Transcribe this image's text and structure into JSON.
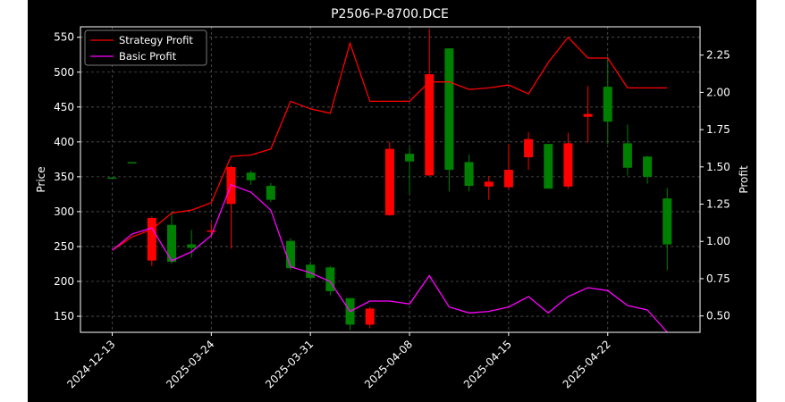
{
  "chart_data": {
    "type": "candlestick",
    "title": "P2506-P-8700.DCE",
    "xlabel": "",
    "ylabel_left": "Price",
    "ylabel_right": "Profit",
    "ylim_left": [
      127,
      565
    ],
    "ylim_right": [
      0.39,
      2.44
    ],
    "yticks_left": [
      150,
      200,
      250,
      300,
      350,
      400,
      450,
      500,
      550
    ],
    "yticks_right": [
      0.5,
      0.75,
      1.0,
      1.25,
      1.5,
      1.75,
      2.0,
      2.25
    ],
    "xtick_labels": [
      {
        "label": "2024-12-13",
        "index": 0
      },
      {
        "label": "2025-03-24",
        "index": 5
      },
      {
        "label": "2025-03-31",
        "index": 10
      },
      {
        "label": "2025-04-08",
        "index": 15
      },
      {
        "label": "2025-04-15",
        "index": 20
      },
      {
        "label": "2025-04-22",
        "index": 25
      }
    ],
    "grid": true,
    "legend_position": "top-left",
    "candles": [
      {
        "o": 349,
        "h": 349,
        "l": 349,
        "c": 349
      },
      {
        "o": 371,
        "h": 371,
        "l": 371,
        "c": 371
      },
      {
        "o": 291,
        "h": 293,
        "l": 222,
        "c": 230
      },
      {
        "o": 228,
        "h": 300,
        "l": 225,
        "c": 281
      },
      {
        "o": 248,
        "h": 274,
        "l": 234,
        "c": 253
      },
      {
        "o": 273,
        "h": 284,
        "l": 264,
        "c": 272
      },
      {
        "o": 364,
        "h": 366,
        "l": 247,
        "c": 311
      },
      {
        "o": 345,
        "h": 359,
        "l": 338,
        "c": 356
      },
      {
        "o": 317,
        "h": 341,
        "l": 314,
        "c": 337
      },
      {
        "o": 219,
        "h": 262,
        "l": 216,
        "c": 258
      },
      {
        "o": 205,
        "h": 229,
        "l": 202,
        "c": 224
      },
      {
        "o": 186,
        "h": 222,
        "l": 180,
        "c": 220
      },
      {
        "o": 138,
        "h": 176,
        "l": 130,
        "c": 176
      },
      {
        "o": 161,
        "h": 163,
        "l": 133,
        "c": 138
      },
      {
        "o": 390,
        "h": 400,
        "l": 294,
        "c": 295
      },
      {
        "o": 372,
        "h": 392,
        "l": 325,
        "c": 383
      },
      {
        "o": 497,
        "h": 562,
        "l": 351,
        "c": 352
      },
      {
        "o": 360,
        "h": 534,
        "l": 329,
        "c": 534
      },
      {
        "o": 337,
        "h": 382,
        "l": 329,
        "c": 371
      },
      {
        "o": 343,
        "h": 351,
        "l": 317,
        "c": 336
      },
      {
        "o": 360,
        "h": 397,
        "l": 332,
        "c": 335
      },
      {
        "o": 404,
        "h": 414,
        "l": 360,
        "c": 378
      },
      {
        "o": 333,
        "h": 397,
        "l": 333,
        "c": 397
      },
      {
        "o": 398,
        "h": 413,
        "l": 333,
        "c": 336
      },
      {
        "o": 440,
        "h": 480,
        "l": 399,
        "c": 436
      },
      {
        "o": 429,
        "h": 522,
        "l": 397,
        "c": 479
      },
      {
        "o": 363,
        "h": 425,
        "l": 352,
        "c": 398
      },
      {
        "o": 350,
        "h": 380,
        "l": 340,
        "c": 379
      },
      {
        "o": 253,
        "h": 334,
        "l": 216,
        "c": 319
      }
    ],
    "series": [
      {
        "name": "Strategy Profit",
        "color": "#ff0000",
        "values": [
          0.94,
          1.03,
          1.08,
          1.19,
          1.21,
          1.26,
          1.57,
          1.58,
          1.62,
          1.94,
          1.89,
          1.86,
          2.33,
          1.94,
          1.94,
          1.94,
          2.07,
          2.07,
          2.02,
          2.03,
          2.05,
          1.99,
          2.2,
          2.37,
          2.23,
          2.23,
          2.03,
          2.03,
          2.03
        ]
      },
      {
        "name": "Basic Profit",
        "color": "#ff00ff",
        "values": [
          0.94,
          1.05,
          1.09,
          0.87,
          0.93,
          1.04,
          1.38,
          1.33,
          1.21,
          0.83,
          0.79,
          0.73,
          0.53,
          0.6,
          0.6,
          0.58,
          0.77,
          0.56,
          0.52,
          0.53,
          0.56,
          0.63,
          0.52,
          0.63,
          0.69,
          0.67,
          0.57,
          0.54,
          0.39
        ]
      }
    ],
    "up_color": "#008000",
    "down_color": "#ff0000"
  }
}
